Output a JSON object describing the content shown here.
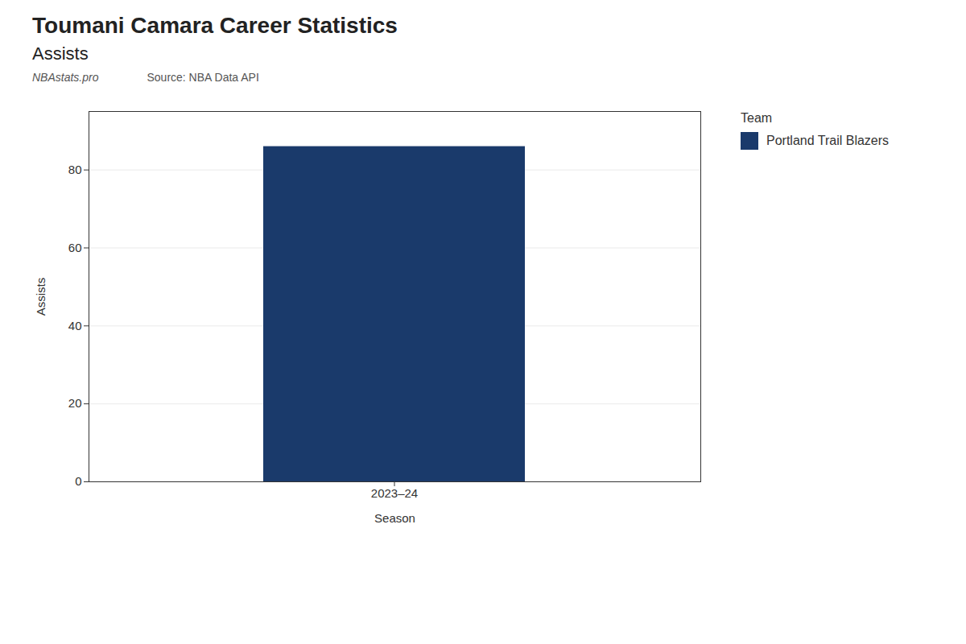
{
  "chart_data": {
    "type": "bar",
    "title": "Toumani Camara Career Statistics",
    "subtitle": "Assists",
    "annotations": [
      "NBAstats.pro",
      "Source: NBA Data API"
    ],
    "xlabel": "Season",
    "ylabel": "Assists",
    "categories": [
      "2023–24"
    ],
    "series": [
      {
        "name": "Portland Trail Blazers",
        "color": "#1a3a6b",
        "values": [
          86
        ]
      }
    ],
    "legend_title": "Team",
    "legend": "right",
    "ylim": [
      0,
      95
    ],
    "yticks": [
      0,
      20,
      40,
      60,
      80
    ],
    "grid": true
  }
}
